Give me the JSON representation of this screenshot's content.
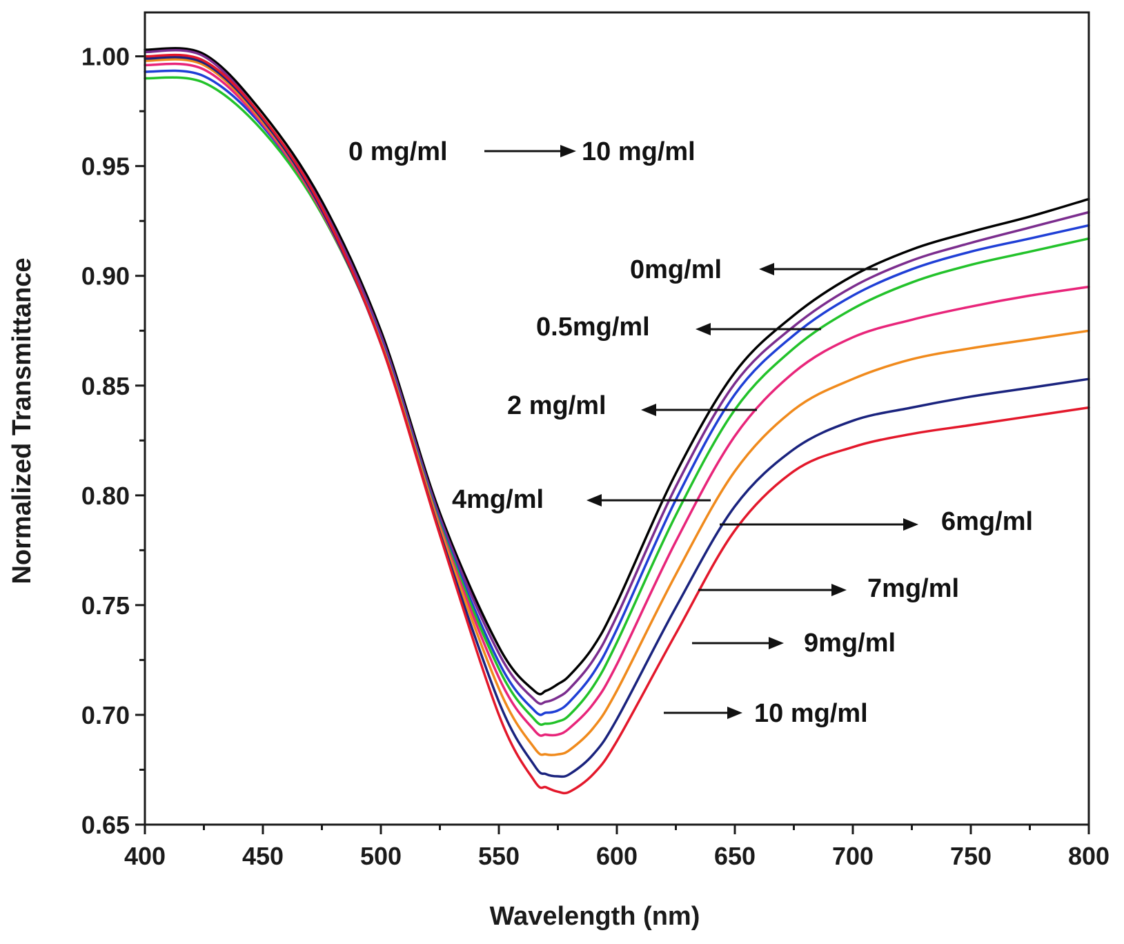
{
  "chart_data": {
    "type": "line",
    "xlabel": "Wavelength (nm)",
    "ylabel": "Normalized Transmittance",
    "xlim": [
      400,
      800
    ],
    "ylim": [
      0.65,
      1.02
    ],
    "xticks": [
      400,
      450,
      500,
      550,
      600,
      650,
      700,
      750,
      800
    ],
    "xtick_labels": [
      "400",
      "450",
      "500",
      "550",
      "600",
      "650",
      "700",
      "750",
      "800"
    ],
    "yticks": [
      0.65,
      0.7,
      0.75,
      0.8,
      0.85,
      0.9,
      0.95,
      1.0
    ],
    "ytick_labels": [
      "0.65",
      "0.70",
      "0.75",
      "0.80",
      "0.85",
      "0.90",
      "0.95",
      "1.00"
    ],
    "x": [
      400,
      425,
      450,
      475,
      500,
      525,
      550,
      565,
      570,
      575,
      580,
      590,
      600,
      625,
      650,
      675,
      700,
      725,
      750,
      775,
      800
    ],
    "series": [
      {
        "name": "0mg/ml",
        "color": "#000000",
        "values": [
          1.003,
          1.001,
          0.974,
          0.934,
          0.875,
          0.792,
          0.731,
          0.711,
          0.711,
          0.714,
          0.718,
          0.731,
          0.751,
          0.81,
          0.856,
          0.882,
          0.9,
          0.912,
          0.92,
          0.927,
          0.935
        ]
      },
      {
        "name": "0.5mg/ml",
        "color": "#7b2d8e",
        "values": [
          1.002,
          1.0,
          0.972,
          0.932,
          0.873,
          0.79,
          0.728,
          0.707,
          0.706,
          0.708,
          0.712,
          0.725,
          0.745,
          0.804,
          0.851,
          0.877,
          0.895,
          0.907,
          0.915,
          0.922,
          0.929
        ]
      },
      {
        "name": "2 mg/ml",
        "color": "#1f3fd6",
        "values": [
          0.993,
          0.991,
          0.968,
          0.929,
          0.871,
          0.788,
          0.724,
          0.702,
          0.701,
          0.702,
          0.706,
          0.719,
          0.739,
          0.798,
          0.846,
          0.873,
          0.891,
          0.903,
          0.911,
          0.917,
          0.923
        ]
      },
      {
        "name": "4mg/ml",
        "color": "#22c22a",
        "values": [
          0.99,
          0.988,
          0.966,
          0.928,
          0.87,
          0.787,
          0.721,
          0.698,
          0.696,
          0.697,
          0.7,
          0.713,
          0.733,
          0.791,
          0.839,
          0.867,
          0.885,
          0.897,
          0.905,
          0.911,
          0.917
        ]
      },
      {
        "name": "6mg/ml",
        "color": "#e8257a",
        "values": [
          0.996,
          0.994,
          0.969,
          0.929,
          0.87,
          0.786,
          0.717,
          0.693,
          0.691,
          0.691,
          0.694,
          0.705,
          0.723,
          0.779,
          0.827,
          0.856,
          0.872,
          0.88,
          0.886,
          0.891,
          0.895
        ]
      },
      {
        "name": "7mg/ml",
        "color": "#f08a1c",
        "values": [
          0.998,
          0.996,
          0.97,
          0.93,
          0.87,
          0.785,
          0.712,
          0.685,
          0.682,
          0.682,
          0.684,
          0.694,
          0.711,
          0.764,
          0.811,
          0.839,
          0.853,
          0.862,
          0.867,
          0.871,
          0.875
        ]
      },
      {
        "name": "9mg/ml",
        "color": "#1a237e",
        "values": [
          0.999,
          0.997,
          0.971,
          0.93,
          0.869,
          0.783,
          0.706,
          0.677,
          0.673,
          0.672,
          0.673,
          0.682,
          0.698,
          0.749,
          0.795,
          0.821,
          0.834,
          0.84,
          0.845,
          0.849,
          0.853
        ]
      },
      {
        "name": "10 mg/ml",
        "color": "#e3182b",
        "values": [
          1.0,
          0.998,
          0.972,
          0.931,
          0.869,
          0.782,
          0.7,
          0.67,
          0.667,
          0.665,
          0.665,
          0.673,
          0.688,
          0.737,
          0.784,
          0.811,
          0.822,
          0.828,
          0.832,
          0.836,
          0.84
        ]
      }
    ],
    "annotations": [
      {
        "text": "0 mg/ml"
      },
      {
        "text": "10 mg/ml"
      },
      {
        "text": "0mg/ml"
      },
      {
        "text": "0.5mg/ml"
      },
      {
        "text": "2 mg/ml"
      },
      {
        "text": "4mg/ml"
      },
      {
        "text": "6mg/ml"
      },
      {
        "text": "7mg/ml"
      },
      {
        "text": "9mg/ml"
      },
      {
        "text": "10 mg/ml"
      }
    ]
  }
}
